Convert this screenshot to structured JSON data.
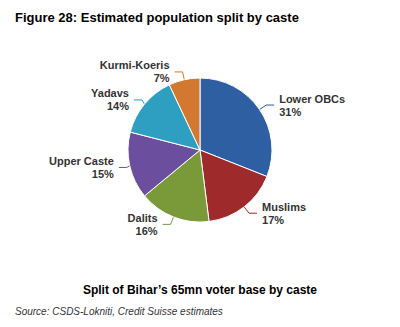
{
  "chart_data": {
    "type": "pie",
    "title": "Figure 28: Estimated population split by caste",
    "subtitle": "Split of Bihar’s 65mn voter base by caste",
    "annotations": [
      "Source: CSDS-Lokniti, Credit Suisse estimates"
    ],
    "categories": [
      "Lower OBCs",
      "Muslims",
      "Dalits",
      "Upper Caste",
      "Yadavs",
      "Kurmi-Koeris"
    ],
    "values": [
      31,
      17,
      16,
      15,
      14,
      7
    ],
    "value_labels": [
      "31%",
      "17%",
      "16%",
      "15%",
      "14%",
      "7%"
    ],
    "colors": [
      "#2E5FA3",
      "#9E2A2B",
      "#7A9A3A",
      "#6B4F9E",
      "#2E9EC1",
      "#D27830"
    ]
  }
}
